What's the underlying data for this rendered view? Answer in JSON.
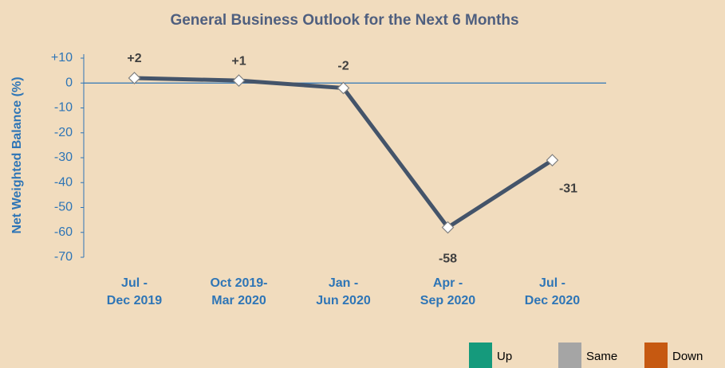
{
  "chart_data": {
    "type": "line",
    "title": "General Business Outlook for the Next 6 Months",
    "y_label": "Net Weighted Balance (%)",
    "categories": [
      "Jul -\nDec 2019",
      "Oct 2019-\nMar 2020",
      "Jan -\nJun 2020",
      "Apr -\nSep 2020",
      "Jul -\nDec 2020"
    ],
    "series": [
      {
        "name": null,
        "color": "#44546a",
        "values": [
          2,
          1,
          -2,
          -58,
          -31
        ],
        "value_labels": [
          "+2",
          "+1",
          "-2",
          "-58",
          "-31"
        ]
      }
    ],
    "ylim": [
      -70,
      10
    ],
    "yticks": [
      {
        "value": 10,
        "label": "+10"
      },
      0,
      -10,
      -20,
      -30,
      -40,
      -50,
      -60,
      -70
    ],
    "legend": [
      {
        "name": "Up",
        "color": "#159a7c"
      },
      {
        "name": "Same",
        "color": "#a5a5a5"
      },
      {
        "name": "Down",
        "color": "#c65911"
      }
    ]
  }
}
